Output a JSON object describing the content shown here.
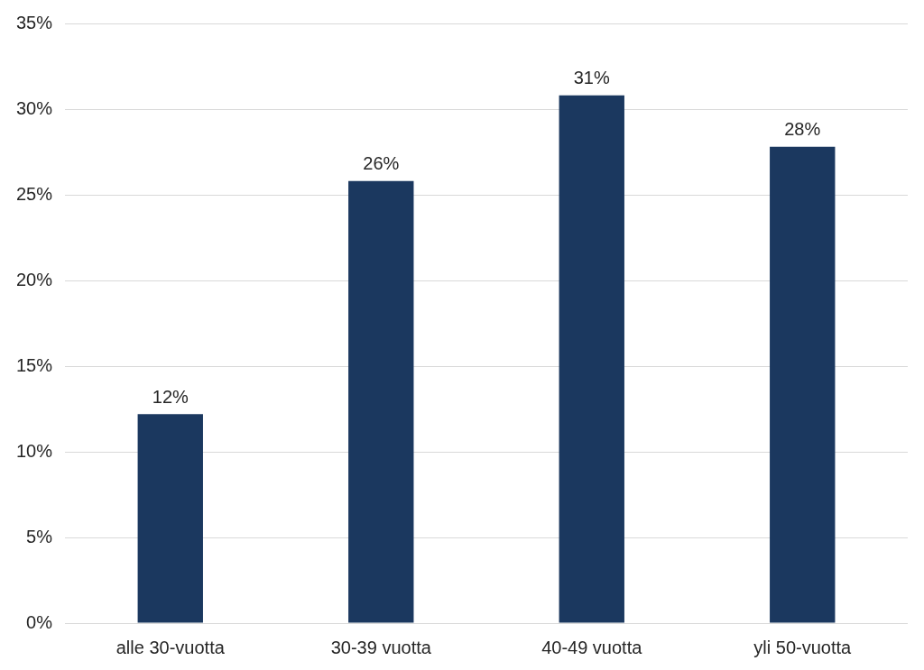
{
  "chart_data": {
    "type": "bar",
    "categories": [
      "alle 30-vuotta",
      "30-39 vuotta",
      "40-49 vuotta",
      "yli 50-vuotta"
    ],
    "values": [
      12.2,
      25.8,
      30.8,
      27.8
    ],
    "value_labels": [
      "12%",
      "26%",
      "31%",
      "28%"
    ],
    "color": "#1b385f",
    "ylim": [
      0,
      35
    ],
    "yticks": [
      {
        "value": 0,
        "label": "0%"
      },
      {
        "value": 5,
        "label": "5%"
      },
      {
        "value": 10,
        "label": "10%"
      },
      {
        "value": 15,
        "label": "15%"
      },
      {
        "value": 20,
        "label": "20%"
      },
      {
        "value": 25,
        "label": "25%"
      },
      {
        "value": 30,
        "label": "30%"
      },
      {
        "value": 35,
        "label": "35%"
      }
    ],
    "grid": true,
    "data_labels": true
  }
}
